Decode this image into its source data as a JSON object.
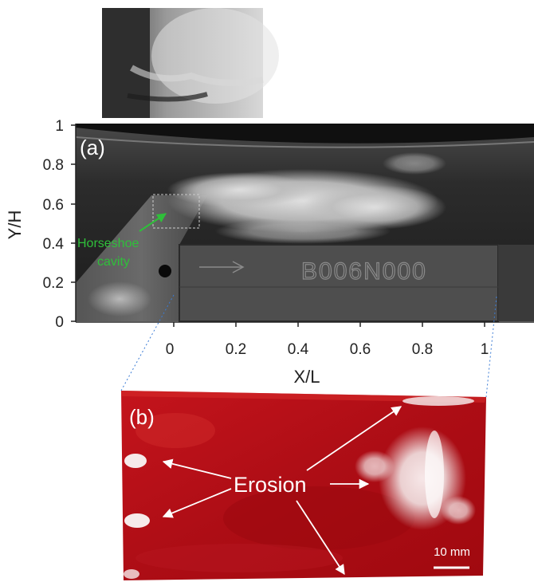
{
  "panel_a": {
    "label": "(a)",
    "y_axis": {
      "title": "Y/H",
      "ticks": [
        "0",
        "0.2",
        "0.4",
        "0.6",
        "0.8",
        "1"
      ]
    },
    "x_axis": {
      "title": "X/L",
      "ticks": [
        "0",
        "0.2",
        "0.4",
        "0.6",
        "0.8",
        "1"
      ]
    },
    "annotation_line1": "Horseshoe",
    "annotation_line2": "cavity",
    "engraving": "B006N000"
  },
  "panel_b": {
    "label": "(b)",
    "annotation": "Erosion",
    "scale_bar": "10 mm"
  },
  "colors": {
    "annotation_green": "#2fbf3a",
    "sample_red": "#b50f18",
    "connector_blue": "#3a7bd5"
  }
}
